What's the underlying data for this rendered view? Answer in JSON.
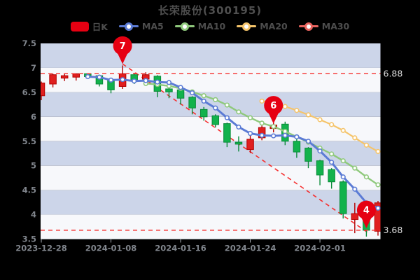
{
  "title": "长荣股份(300195)",
  "legend": [
    {
      "id": "k",
      "label": "日K",
      "color": "#e60012",
      "marker": "swatch"
    },
    {
      "id": "ma5",
      "label": "MA5",
      "color": "#5b7bd5",
      "marker": "line"
    },
    {
      "id": "ma10",
      "label": "MA10",
      "color": "#8fc97c",
      "marker": "line"
    },
    {
      "id": "ma20",
      "label": "MA20",
      "color": "#f5c46a",
      "marker": "line"
    },
    {
      "id": "ma30",
      "label": "MA30",
      "color": "#e8635e",
      "marker": "line"
    }
  ],
  "colors": {
    "background": "#000000",
    "band_blue": "#ccd5e9",
    "band_white": "#f7f8fb",
    "candle_up": "#e01f1f",
    "candle_up_border": "#b30000",
    "candle_down": "#12b24c",
    "candle_down_border": "#0a8a39",
    "ma5": "#5b7bd5",
    "ma10": "#8fc97c",
    "ma20": "#f5c46a",
    "annotation_red": "#f53030",
    "pin_red": "#e60012",
    "axis_text": "#80858c",
    "axis_line": "#aab0b6",
    "hline_label_text": "#dddddd"
  },
  "chart_data": {
    "type": "candlestick",
    "ohlc_format": [
      "open",
      "close",
      "low",
      "high"
    ],
    "dates": [
      "2023-12-28",
      "2023-12-29",
      "2024-01-02",
      "2024-01-03",
      "2024-01-04",
      "2024-01-05",
      "2024-01-08",
      "2024-01-09",
      "2024-01-10",
      "2024-01-11",
      "2024-01-12",
      "2024-01-15",
      "2024-01-16",
      "2024-01-17",
      "2024-01-18",
      "2024-01-19",
      "2024-01-22",
      "2024-01-23",
      "2024-01-24",
      "2024-01-25",
      "2024-01-26",
      "2024-01-29",
      "2024-01-30",
      "2024-01-31",
      "2024-02-01",
      "2024-02-02",
      "2024-02-05",
      "2024-02-06",
      "2024-02-07",
      "2024-02-08"
    ],
    "candles": [
      [
        6.43,
        6.69,
        6.34,
        6.72
      ],
      [
        6.67,
        6.86,
        6.6,
        6.88
      ],
      [
        6.79,
        6.84,
        6.73,
        6.88
      ],
      [
        6.81,
        6.88,
        6.74,
        6.88
      ],
      [
        6.88,
        6.82,
        6.78,
        6.88
      ],
      [
        6.84,
        6.67,
        6.62,
        6.86
      ],
      [
        6.75,
        6.55,
        6.48,
        6.77
      ],
      [
        6.62,
        6.88,
        6.57,
        7.05
      ],
      [
        6.86,
        6.74,
        6.67,
        6.9
      ],
      [
        6.77,
        6.86,
        6.69,
        6.91
      ],
      [
        6.83,
        6.52,
        6.4,
        6.85
      ],
      [
        6.57,
        6.51,
        6.38,
        6.62
      ],
      [
        6.55,
        6.38,
        6.25,
        6.62
      ],
      [
        6.4,
        6.18,
        6.05,
        6.42
      ],
      [
        6.15,
        6.0,
        5.92,
        6.2
      ],
      [
        6.02,
        5.84,
        5.78,
        6.05
      ],
      [
        5.86,
        5.48,
        5.38,
        5.88
      ],
      [
        5.48,
        5.44,
        5.29,
        5.6
      ],
      [
        5.33,
        5.54,
        5.26,
        5.65
      ],
      [
        5.57,
        5.78,
        5.52,
        5.82
      ],
      [
        5.76,
        5.83,
        5.68,
        5.88
      ],
      [
        5.85,
        5.5,
        5.42,
        5.9
      ],
      [
        5.5,
        5.28,
        5.16,
        5.56
      ],
      [
        5.36,
        5.09,
        4.95,
        5.38
      ],
      [
        5.1,
        4.81,
        4.6,
        5.12
      ],
      [
        4.92,
        4.67,
        4.53,
        4.95
      ],
      [
        4.67,
        4.02,
        3.92,
        4.7
      ],
      [
        3.9,
        4.02,
        3.62,
        4.24
      ],
      [
        3.95,
        3.68,
        3.55,
        3.98
      ],
      [
        3.66,
        4.24,
        3.57,
        4.28
      ]
    ],
    "series": [
      {
        "name": "MA5",
        "start_index": 4,
        "values": [
          6.82,
          6.81,
          6.75,
          6.76,
          6.73,
          6.74,
          6.71,
          6.7,
          6.6,
          6.49,
          6.32,
          6.18,
          5.98,
          5.79,
          5.66,
          5.62,
          5.61,
          5.62,
          5.59,
          5.5,
          5.3,
          5.07,
          4.77,
          4.52,
          4.24,
          4.13
        ]
      },
      {
        "name": "MA10",
        "start_index": 9,
        "values": [
          6.68,
          6.66,
          6.63,
          6.58,
          6.51,
          6.43,
          6.35,
          6.24,
          6.1,
          5.98,
          5.87,
          5.8,
          5.7,
          5.59,
          5.48,
          5.36,
          5.24,
          5.1,
          4.95,
          4.77,
          4.61
        ]
      },
      {
        "name": "MA20",
        "start_index": 19,
        "values": [
          6.32,
          6.28,
          6.21,
          6.13,
          6.04,
          5.94,
          5.84,
          5.72,
          5.57,
          5.42,
          5.29
        ]
      },
      {
        "name": "MA30",
        "start_index": null,
        "values": []
      }
    ],
    "ylim": [
      3.5,
      7.5
    ],
    "ytick_step": 0.5,
    "ytick_labels": [
      "7.5",
      "7",
      "6.5",
      "6",
      "5.5",
      "5",
      "4.5",
      "4",
      "3.5"
    ],
    "xticks": [
      {
        "index": 0,
        "label": "2023-12-28"
      },
      {
        "index": 6,
        "label": "2024-01-08"
      },
      {
        "index": 12,
        "label": "2024-01-16"
      },
      {
        "index": 18,
        "label": "2024-01-24"
      },
      {
        "index": 24,
        "label": "2024-02-01"
      }
    ],
    "hlines": [
      {
        "value": 6.88,
        "label": "6.88"
      },
      {
        "value": 3.68,
        "label": "3.68"
      }
    ],
    "trendline": {
      "from": {
        "index": 7,
        "value": 7.08
      },
      "to": {
        "index": 28.2,
        "value": 3.62
      }
    },
    "markers": [
      {
        "index": 7,
        "label": "7",
        "value": 7.08
      },
      {
        "index": 20,
        "label": "6",
        "value": 5.86
      },
      {
        "index": 28,
        "label": "4",
        "value": 3.72
      }
    ],
    "grid": "striped-bands",
    "legend_position": "top-center"
  }
}
